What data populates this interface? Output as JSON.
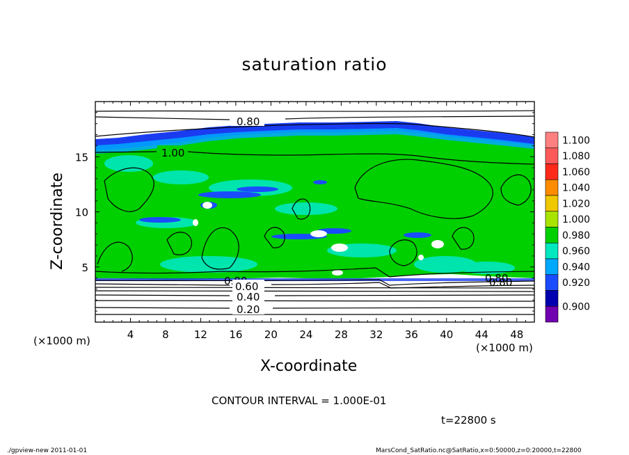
{
  "chart_data": {
    "type": "heatmap",
    "title": "saturation ratio",
    "xlabel": "X-coordinate",
    "ylabel": "Z-coordinate",
    "x_unit": "(×1000 m)",
    "y_unit": "(×1000 m)",
    "xlim": [
      0,
      50
    ],
    "ylim": [
      0,
      20
    ],
    "x_ticks": [
      "4",
      "8",
      "12",
      "16",
      "20",
      "24",
      "28",
      "32",
      "36",
      "40",
      "44",
      "48"
    ],
    "y_ticks": [
      "5",
      "10",
      "15"
    ],
    "contour_labels": [
      "0.80",
      "1.00",
      "0.80",
      "0.60",
      "0.40",
      "0.20",
      "0.80",
      "0.80"
    ],
    "colorbar": {
      "levels": [
        "1.100",
        "1.080",
        "1.060",
        "1.040",
        "1.020",
        "1.000",
        "0.980",
        "0.960",
        "0.940",
        "0.920",
        "0.900"
      ],
      "colors": [
        "#ff8080",
        "#ff5a5a",
        "#ff2a1a",
        "#ff8c00",
        "#f0c800",
        "#a8e400",
        "#00d000",
        "#00e8c0",
        "#00a8ff",
        "#1a4cff",
        "#0000b0",
        "#7000b0"
      ]
    },
    "footer_interval": "CONTOUR INTERVAL = 1.000E-01",
    "time_label": "t=22800 s",
    "footer_left": "./gpview-new  2011-01-01",
    "footer_right": "MarsCond_SatRatio.nc@SatRatio,x=0:50000,z=0:20000,t=22800"
  }
}
